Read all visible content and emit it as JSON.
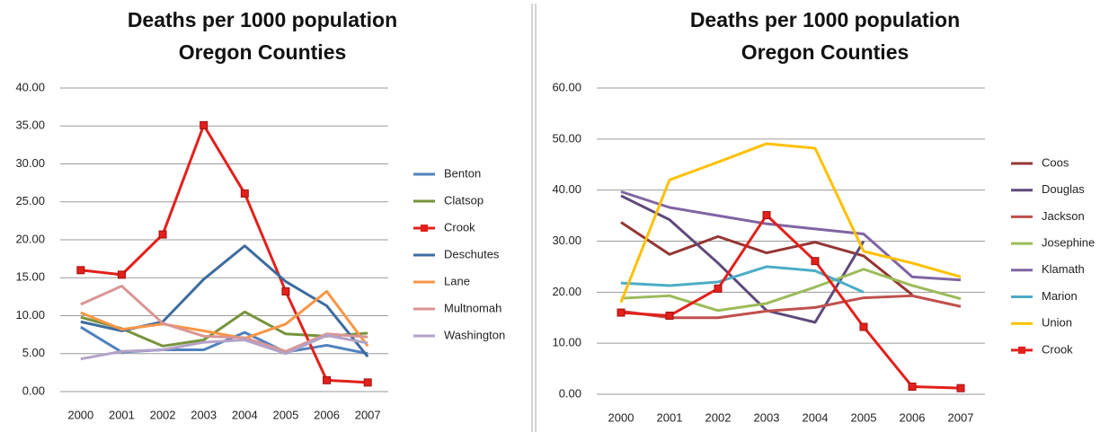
{
  "chart_data": [
    {
      "type": "line",
      "title": [
        "Deaths per 1000 population",
        "Oregon Counties"
      ],
      "categories": [
        "2000",
        "2001",
        "2002",
        "2003",
        "2004",
        "2005",
        "2006",
        "2007"
      ],
      "ylim": [
        0,
        40
      ],
      "yticks": [
        {
          "value": 0,
          "label": "0.00"
        },
        {
          "value": 5,
          "label": "5.00"
        },
        {
          "value": 10,
          "label": "10.00"
        },
        {
          "value": 15,
          "label": "15.00"
        },
        {
          "value": 20,
          "label": "20.00"
        },
        {
          "value": 25,
          "label": "25.00"
        },
        {
          "value": 30,
          "label": "30.00"
        },
        {
          "value": 35,
          "label": "35.00"
        },
        {
          "value": 40,
          "label": "40.00"
        }
      ],
      "grid": true,
      "legend": "right",
      "series": [
        {
          "name": "Benton",
          "color": "#4f81bd",
          "values": [
            8.5,
            5.2,
            5.5,
            5.5,
            7.8,
            5.2,
            6.1,
            5.0
          ]
        },
        {
          "name": "Clatsop",
          "color": "#77933c",
          "values": [
            9.8,
            8.3,
            6.0,
            6.8,
            10.5,
            7.6,
            7.3,
            7.7
          ]
        },
        {
          "name": "Crook",
          "color": "#e3201b",
          "marker": "square",
          "values": [
            16.0,
            15.4,
            20.7,
            35.1,
            26.1,
            13.2,
            1.5,
            1.2
          ]
        },
        {
          "name": "Deschutes",
          "color": "#3d6b9e",
          "values": [
            9.2,
            8.0,
            9.2,
            14.8,
            19.2,
            14.5,
            11.3,
            4.6
          ]
        },
        {
          "name": "Lane",
          "color": "#f79646",
          "values": [
            10.4,
            8.2,
            8.9,
            8.0,
            7.0,
            8.9,
            13.2,
            6.0
          ]
        },
        {
          "name": "Multnomah",
          "color": "#d99694",
          "values": [
            11.5,
            13.9,
            9.0,
            7.3,
            7.1,
            5.3,
            7.6,
            7.2
          ]
        },
        {
          "name": "Washington",
          "color": "#b3a2c7",
          "values": [
            4.3,
            5.3,
            5.5,
            6.5,
            6.8,
            5.0,
            7.4,
            6.4
          ]
        }
      ]
    },
    {
      "type": "line",
      "title": [
        "Deaths per 1000 population",
        "Oregon Counties"
      ],
      "categories": [
        "2000",
        "2001",
        "2002",
        "2003",
        "2004",
        "2005",
        "2006",
        "2007"
      ],
      "ylim": [
        0,
        60
      ],
      "yticks": [
        {
          "value": 0,
          "label": "0.00"
        },
        {
          "value": 10,
          "label": "10.00"
        },
        {
          "value": 20,
          "label": "20.00"
        },
        {
          "value": 30,
          "label": "30.00"
        },
        {
          "value": 40,
          "label": "40.00"
        },
        {
          "value": 50,
          "label": "50.00"
        },
        {
          "value": 60,
          "label": "60.00"
        }
      ],
      "grid": true,
      "legend": "right",
      "series": [
        {
          "name": "Coos",
          "color": "#943634",
          "values": [
            33.7,
            27.4,
            30.9,
            27.7,
            29.8,
            27.1,
            19.5,
            null
          ]
        },
        {
          "name": "Douglas",
          "color": "#5f497a",
          "values": [
            38.9,
            34.2,
            25.7,
            16.4,
            14.1,
            30.0,
            null,
            null
          ]
        },
        {
          "name": "Jackson",
          "color": "#c0504d",
          "values": [
            16.3,
            15.0,
            15.0,
            16.3,
            17.0,
            18.9,
            19.3,
            17.2
          ]
        },
        {
          "name": "Josephine",
          "color": "#9bbb59",
          "values": [
            18.8,
            19.3,
            16.4,
            17.8,
            21.0,
            24.5,
            21.3,
            18.7
          ]
        },
        {
          "name": "Klamath",
          "color": "#8064a2",
          "values": [
            39.7,
            36.6,
            35.0,
            33.4,
            32.4,
            31.4,
            23.0,
            22.4
          ]
        },
        {
          "name": "Marion",
          "color": "#4bacc6",
          "values": [
            21.8,
            21.3,
            22.0,
            25.0,
            24.2,
            20.0,
            null,
            null
          ]
        },
        {
          "name": "Union",
          "color": "#ffc000",
          "values": [
            18.0,
            42.0,
            45.5,
            49.1,
            48.2,
            28.0,
            25.7,
            23.0
          ]
        },
        {
          "name": "Crook",
          "color": "#e3201b",
          "marker": "square",
          "values": [
            16.0,
            15.4,
            20.7,
            35.1,
            26.1,
            13.2,
            1.5,
            1.2
          ]
        }
      ]
    }
  ]
}
